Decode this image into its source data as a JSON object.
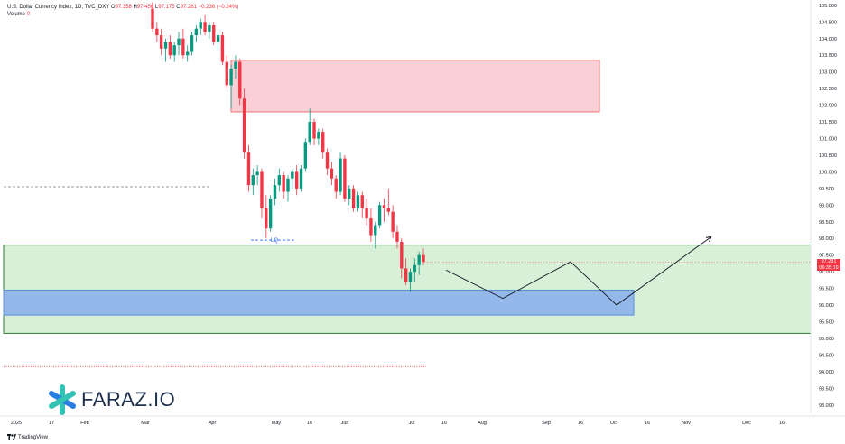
{
  "header": {
    "title": "U.S. Dollar Currency Index, 1D, TVC_DXY",
    "o_label": "O",
    "o_value": "97.358",
    "h_label": "H",
    "h_value": "97.456",
    "l_label": "L",
    "l_value": "97.175",
    "c_label": "C",
    "c_value": "97.281",
    "change": "−0.236 (−0.24%)",
    "volume_label": "Volume",
    "volume_value": "0"
  },
  "colors": {
    "up": "#089981",
    "down": "#f23645",
    "supply_zone": "#f7b5bf",
    "demand_zone": "#cdeccd",
    "blue_zone": "#8fb4ea",
    "zone_border_green": "#2e7d32"
  },
  "price_label": {
    "price": "97.281",
    "countdown": "06:35:19"
  },
  "annotation": {
    "lq": "LQ"
  },
  "logo": {
    "text": "FARAZ.IO"
  },
  "brand": {
    "text": "TradingView"
  },
  "chart_data": {
    "type": "candlestick",
    "ylim": [
      92.75,
      105.05
    ],
    "y_ticks": [
      "105.000",
      "104.500",
      "104.000",
      "103.500",
      "103.000",
      "102.500",
      "102.000",
      "101.500",
      "101.000",
      "100.500",
      "100.000",
      "99.500",
      "99.000",
      "98.500",
      "98.000",
      "97.500",
      "97.000",
      "96.500",
      "96.000",
      "95.500",
      "95.000",
      "94.500",
      "94.000",
      "93.500",
      "93.000"
    ],
    "x_ticks": [
      "2025",
      "17",
      "Feb",
      "Mar",
      "Apr",
      "May",
      "16",
      "Jun",
      "Jul",
      "16",
      "Aug",
      "Sep",
      "16",
      "Oct",
      "16",
      "Nov",
      "Dec",
      "16"
    ],
    "candles": [
      [
        104.9,
        105.1,
        104.2,
        104.3
      ],
      [
        104.3,
        104.5,
        103.9,
        104.1
      ],
      [
        104.1,
        104.3,
        103.5,
        103.7
      ],
      [
        103.7,
        104.0,
        103.3,
        103.9
      ],
      [
        103.9,
        104.1,
        103.4,
        103.5
      ],
      [
        103.5,
        103.9,
        103.3,
        103.8
      ],
      [
        103.8,
        104.2,
        103.5,
        104.0
      ],
      [
        104.0,
        104.3,
        103.4,
        103.5
      ],
      [
        103.5,
        103.8,
        103.3,
        103.6
      ],
      [
        103.6,
        104.2,
        103.5,
        104.1
      ],
      [
        104.1,
        104.4,
        103.9,
        104.3
      ],
      [
        104.3,
        104.6,
        104.1,
        104.5
      ],
      [
        104.5,
        104.7,
        104.1,
        104.2
      ],
      [
        104.2,
        104.5,
        104.0,
        104.4
      ],
      [
        104.4,
        104.5,
        103.8,
        103.9
      ],
      [
        103.9,
        104.2,
        103.7,
        104.1
      ],
      [
        104.1,
        104.2,
        103.2,
        103.3
      ],
      [
        103.3,
        103.5,
        102.5,
        102.6
      ],
      [
        102.6,
        103.2,
        101.9,
        103.1
      ],
      [
        103.1,
        103.5,
        102.8,
        103.3
      ],
      [
        103.3,
        103.4,
        102.0,
        102.2
      ],
      [
        102.2,
        102.5,
        100.4,
        100.6
      ],
      [
        100.6,
        100.8,
        99.4,
        99.6
      ],
      [
        99.6,
        100.1,
        99.3,
        99.9
      ],
      [
        99.9,
        100.2,
        99.6,
        100.0
      ],
      [
        100.0,
        100.1,
        98.6,
        98.9
      ],
      [
        98.9,
        99.3,
        98.0,
        98.3
      ],
      [
        98.3,
        99.3,
        98.2,
        99.2
      ],
      [
        99.2,
        99.8,
        99.0,
        99.6
      ],
      [
        99.6,
        100.1,
        99.4,
        99.9
      ],
      [
        99.9,
        100.0,
        99.2,
        99.4
      ],
      [
        99.4,
        99.9,
        99.1,
        99.8
      ],
      [
        99.8,
        100.1,
        99.5,
        100.0
      ],
      [
        100.0,
        100.2,
        99.3,
        99.5
      ],
      [
        99.5,
        100.2,
        99.4,
        100.1
      ],
      [
        100.1,
        101.0,
        100.0,
        100.9
      ],
      [
        100.9,
        101.9,
        100.8,
        101.5
      ],
      [
        101.5,
        101.6,
        100.8,
        101.0
      ],
      [
        101.0,
        101.3,
        100.8,
        101.2
      ],
      [
        101.2,
        101.3,
        100.4,
        100.6
      ],
      [
        100.6,
        100.7,
        99.9,
        100.1
      ],
      [
        100.1,
        100.3,
        99.6,
        99.8
      ],
      [
        99.8,
        99.9,
        99.2,
        99.4
      ],
      [
        99.4,
        100.6,
        99.3,
        100.4
      ],
      [
        100.4,
        100.5,
        99.1,
        99.2
      ],
      [
        99.2,
        99.6,
        99.0,
        99.5
      ],
      [
        99.5,
        99.6,
        98.8,
        98.9
      ],
      [
        98.9,
        99.4,
        98.8,
        99.3
      ],
      [
        99.3,
        99.4,
        98.6,
        98.9
      ],
      [
        98.9,
        99.2,
        98.4,
        98.6
      ],
      [
        98.6,
        98.9,
        97.9,
        98.1
      ],
      [
        98.1,
        98.5,
        97.7,
        98.4
      ],
      [
        98.4,
        99.1,
        98.3,
        99.0
      ],
      [
        99.0,
        99.2,
        98.5,
        98.9
      ],
      [
        98.9,
        99.5,
        98.7,
        98.8
      ],
      [
        98.8,
        99.0,
        98.0,
        98.2
      ],
      [
        98.2,
        98.4,
        97.7,
        97.9
      ],
      [
        97.9,
        98.0,
        96.8,
        97.1
      ],
      [
        97.1,
        97.4,
        96.6,
        96.7
      ],
      [
        96.7,
        97.1,
        96.4,
        97.0
      ],
      [
        97.0,
        97.4,
        96.7,
        97.2
      ],
      [
        97.2,
        97.6,
        96.9,
        97.5
      ],
      [
        97.5,
        97.7,
        97.2,
        97.3
      ]
    ],
    "zones": [
      {
        "name": "supply",
        "from": 101.8,
        "to": 103.35
      },
      {
        "name": "demand",
        "from": 95.15,
        "to": 97.8
      },
      {
        "name": "blue",
        "from": 95.7,
        "to": 96.45
      }
    ],
    "levels": [
      {
        "name": "dashed-level",
        "price": 99.55
      },
      {
        "name": "lq-level",
        "price": 97.95
      },
      {
        "name": "red-dotted-level",
        "price": 94.15
      },
      {
        "name": "last-price",
        "price": 97.281
      }
    ],
    "projection": [
      [
        97.05,
        "start"
      ],
      [
        96.2,
        "low-1"
      ],
      [
        97.3,
        "high-1"
      ],
      [
        96.0,
        "low-2"
      ],
      [
        98.05,
        "target"
      ]
    ]
  }
}
